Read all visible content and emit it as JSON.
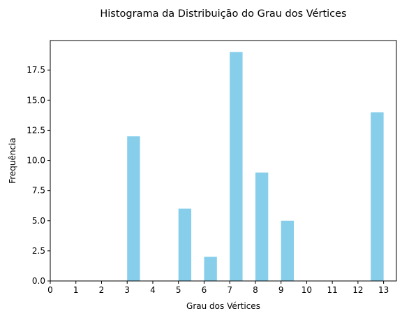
{
  "chart_data": {
    "type": "bar",
    "title": "Histograma da Distribuição do Grau dos Vértices",
    "xlabel": "Grau dos Vértices",
    "ylabel": "Frequência",
    "xlim": [
      0,
      13.5
    ],
    "ylim": [
      0,
      19.95
    ],
    "x_ticks": [
      "0",
      "1",
      "2",
      "3",
      "4",
      "5",
      "6",
      "7",
      "8",
      "9",
      "10",
      "11",
      "12",
      "13"
    ],
    "y_ticks": [
      "0.0",
      "2.5",
      "5.0",
      "7.5",
      "10.0",
      "12.5",
      "15.0",
      "17.5"
    ],
    "bar_width": 0.5,
    "bar_color": "#87CEEB",
    "grid": false,
    "legend": "none",
    "bars": [
      {
        "x": 3,
        "value": 12
      },
      {
        "x": 5,
        "value": 6
      },
      {
        "x": 6,
        "value": 2
      },
      {
        "x": 7,
        "value": 19
      },
      {
        "x": 8,
        "value": 9
      },
      {
        "x": 9,
        "value": 5
      },
      {
        "x": 12.5,
        "value": 14
      }
    ]
  }
}
